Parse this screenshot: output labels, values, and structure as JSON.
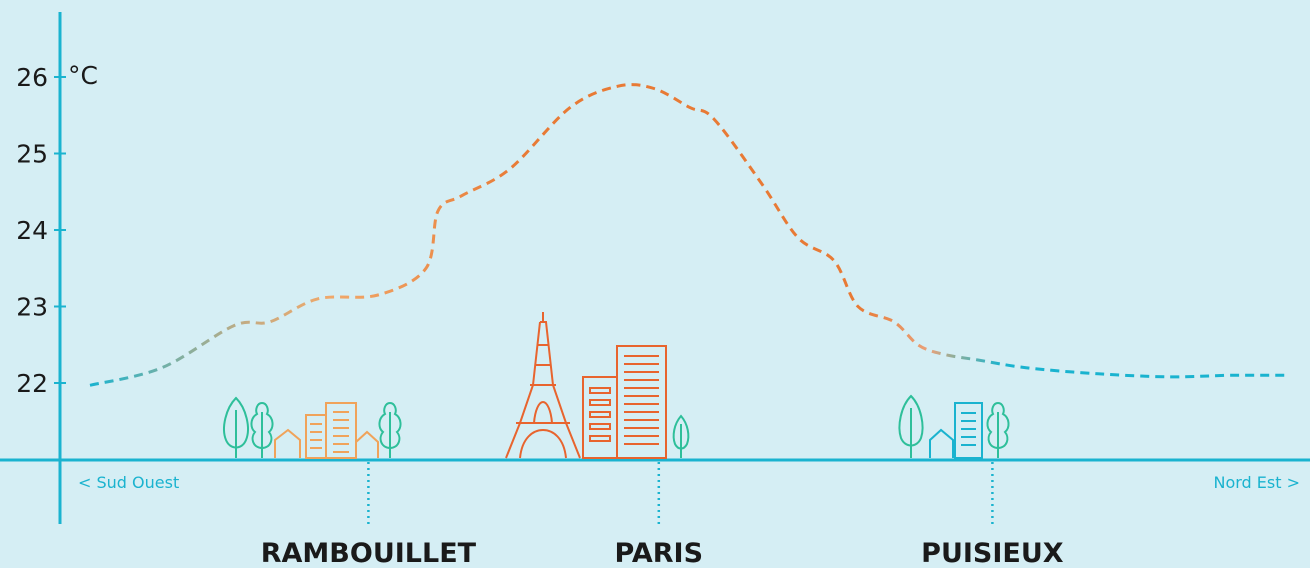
{
  "chart_data": {
    "type": "line",
    "title": "",
    "ylabel": "°C",
    "ylim": [
      21,
      26.8
    ],
    "yticks": [
      22,
      23,
      24,
      25,
      26
    ],
    "grid": false,
    "direction_labels": {
      "left": "< Sud Ouest",
      "right": "Nord Est >"
    },
    "cities": [
      {
        "name": "RAMBOUILLET",
        "position": 0.232
      },
      {
        "name": "PARIS",
        "position": 0.474
      },
      {
        "name": "PUISIEUX",
        "position": 0.752
      }
    ],
    "series": [
      {
        "x": [
          0.0,
          0.06,
          0.12,
          0.15,
          0.19,
          0.24,
          0.28,
          0.29,
          0.31,
          0.35,
          0.4,
          0.44,
          0.47,
          0.5,
          0.52,
          0.56,
          0.59,
          0.62,
          0.64,
          0.67,
          0.69,
          0.71,
          0.74,
          0.78,
          0.84,
          0.9,
          0.95,
          1.0
        ],
        "y": [
          21.97,
          22.2,
          22.75,
          22.8,
          23.1,
          23.15,
          23.5,
          24.25,
          24.45,
          24.8,
          25.6,
          25.88,
          25.85,
          25.6,
          25.45,
          24.6,
          23.9,
          23.6,
          23.0,
          22.8,
          22.5,
          22.38,
          22.3,
          22.2,
          22.12,
          22.08,
          22.1,
          22.1
        ]
      }
    ],
    "colors": {
      "axis": "#1ab3cf",
      "line_hot": "#e87a35",
      "line_warm": "#f0a86a",
      "line_mid": "#8fae9a",
      "line_cool": "#1ab3cf",
      "paris": "#e8642e",
      "rambouillet": "#f0a35a",
      "tree": "#2ebf9a",
      "puisieux": "#1ab3cf"
    }
  }
}
